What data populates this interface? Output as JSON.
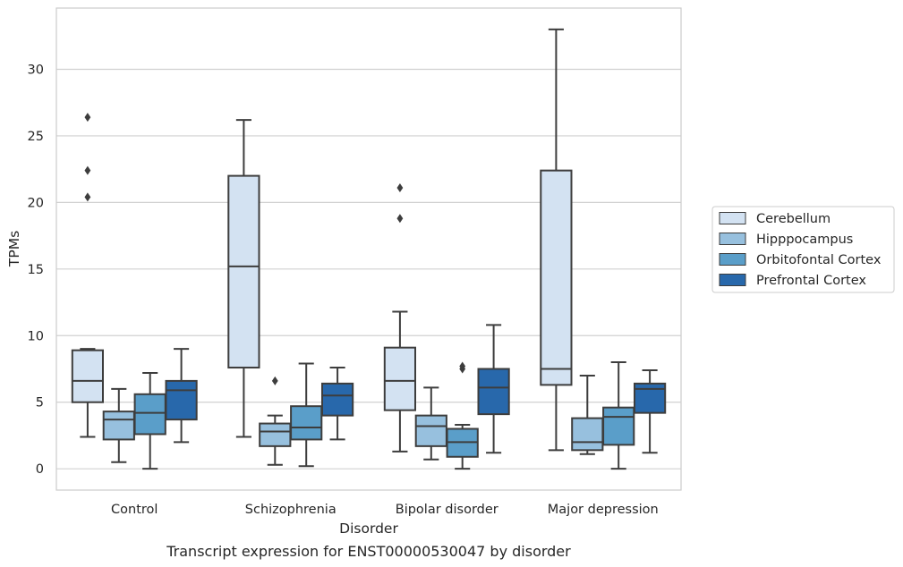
{
  "chart_data": {
    "type": "box",
    "xlabel": "Disorder",
    "ylabel": "TPMs",
    "caption": "Transcript expression for ENST00000530047 by disorder",
    "categories": [
      "Control",
      "Schizophrenia",
      "Bipolar disorder",
      "Major depression"
    ],
    "ylim": [
      -1.6,
      34.6
    ],
    "yticks": [
      0,
      5,
      10,
      15,
      20,
      25,
      30
    ],
    "grid": "horizontal",
    "legend_position": "right",
    "series": [
      {
        "name": "Cerebellum",
        "color": "#d3e2f2",
        "boxes": [
          {
            "whisker_low": 2.4,
            "q1": 5.0,
            "median": 6.6,
            "q3": 8.9,
            "whisker_high": 9.0,
            "outliers": [
              20.4,
              22.4,
              26.4
            ]
          },
          {
            "whisker_low": 2.4,
            "q1": 7.6,
            "median": 15.2,
            "q3": 22.0,
            "whisker_high": 26.2,
            "outliers": []
          },
          {
            "whisker_low": 1.3,
            "q1": 4.4,
            "median": 6.6,
            "q3": 9.1,
            "whisker_high": 11.8,
            "outliers": [
              18.8,
              21.1
            ]
          },
          {
            "whisker_low": 1.4,
            "q1": 6.3,
            "median": 7.5,
            "q3": 22.4,
            "whisker_high": 33.0,
            "outliers": []
          }
        ]
      },
      {
        "name": "Hipppocampus",
        "color": "#97c0de",
        "boxes": [
          {
            "whisker_low": 0.5,
            "q1": 2.2,
            "median": 3.7,
            "q3": 4.3,
            "whisker_high": 6.0,
            "outliers": []
          },
          {
            "whisker_low": 0.3,
            "q1": 1.7,
            "median": 2.8,
            "q3": 3.4,
            "whisker_high": 4.0,
            "outliers": [
              6.6
            ]
          },
          {
            "whisker_low": 0.7,
            "q1": 1.7,
            "median": 3.2,
            "q3": 4.0,
            "whisker_high": 6.1,
            "outliers": []
          },
          {
            "whisker_low": 1.1,
            "q1": 1.4,
            "median": 2.0,
            "q3": 3.8,
            "whisker_high": 7.0,
            "outliers": []
          }
        ]
      },
      {
        "name": "Orbitofontal Cortex",
        "color": "#5a9ec9",
        "boxes": [
          {
            "whisker_low": 0.0,
            "q1": 2.6,
            "median": 4.2,
            "q3": 5.6,
            "whisker_high": 7.2,
            "outliers": []
          },
          {
            "whisker_low": 0.2,
            "q1": 2.2,
            "median": 3.1,
            "q3": 4.7,
            "whisker_high": 7.9,
            "outliers": []
          },
          {
            "whisker_low": 0.0,
            "q1": 0.9,
            "median": 2.0,
            "q3": 3.0,
            "whisker_high": 3.3,
            "outliers": [
              7.5,
              7.7
            ]
          },
          {
            "whisker_low": 0.0,
            "q1": 1.8,
            "median": 3.9,
            "q3": 4.6,
            "whisker_high": 8.0,
            "outliers": []
          }
        ]
      },
      {
        "name": "Prefrontal Cortex",
        "color": "#2868ab",
        "boxes": [
          {
            "whisker_low": 2.0,
            "q1": 3.7,
            "median": 5.9,
            "q3": 6.6,
            "whisker_high": 9.0,
            "outliers": []
          },
          {
            "whisker_low": 2.2,
            "q1": 4.0,
            "median": 5.5,
            "q3": 6.4,
            "whisker_high": 7.6,
            "outliers": []
          },
          {
            "whisker_low": 1.2,
            "q1": 4.1,
            "median": 6.1,
            "q3": 7.5,
            "whisker_high": 10.8,
            "outliers": []
          },
          {
            "whisker_low": 1.2,
            "q1": 4.2,
            "median": 6.0,
            "q3": 6.4,
            "whisker_high": 7.4,
            "outliers": []
          }
        ]
      }
    ]
  }
}
